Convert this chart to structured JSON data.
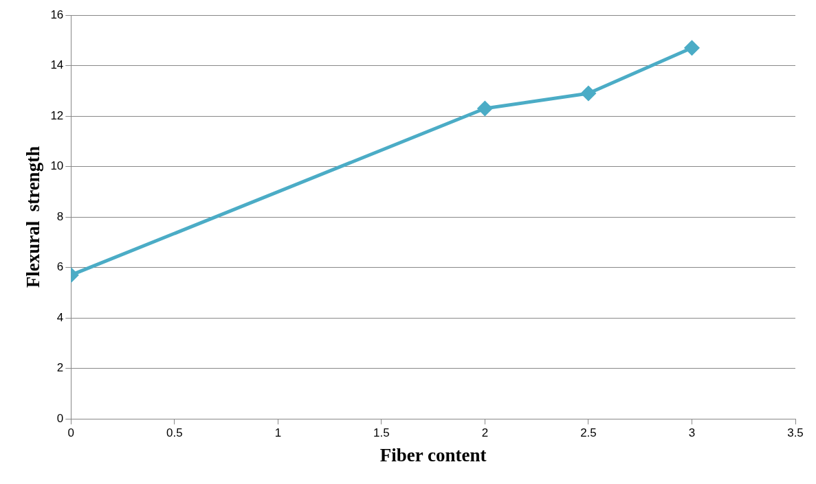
{
  "chart_data": {
    "type": "line",
    "xlabel": "Fiber content",
    "ylabel": "Flexural  strength",
    "x": [
      0,
      2,
      2.5,
      3
    ],
    "series": [
      {
        "color": "#4bacc6",
        "values": [
          5.7,
          12.3,
          12.9,
          14.7
        ]
      }
    ],
    "xlim": [
      0,
      3.5
    ],
    "xticks": [
      0,
      0.5,
      1,
      1.5,
      2,
      2.5,
      3,
      3.5
    ],
    "ylim": [
      0,
      16
    ],
    "yticks": [
      0,
      2,
      4,
      6,
      8,
      10,
      12,
      14,
      16
    ],
    "grid": "y",
    "legend": false,
    "marker": "diamond",
    "line_style": "solid"
  }
}
